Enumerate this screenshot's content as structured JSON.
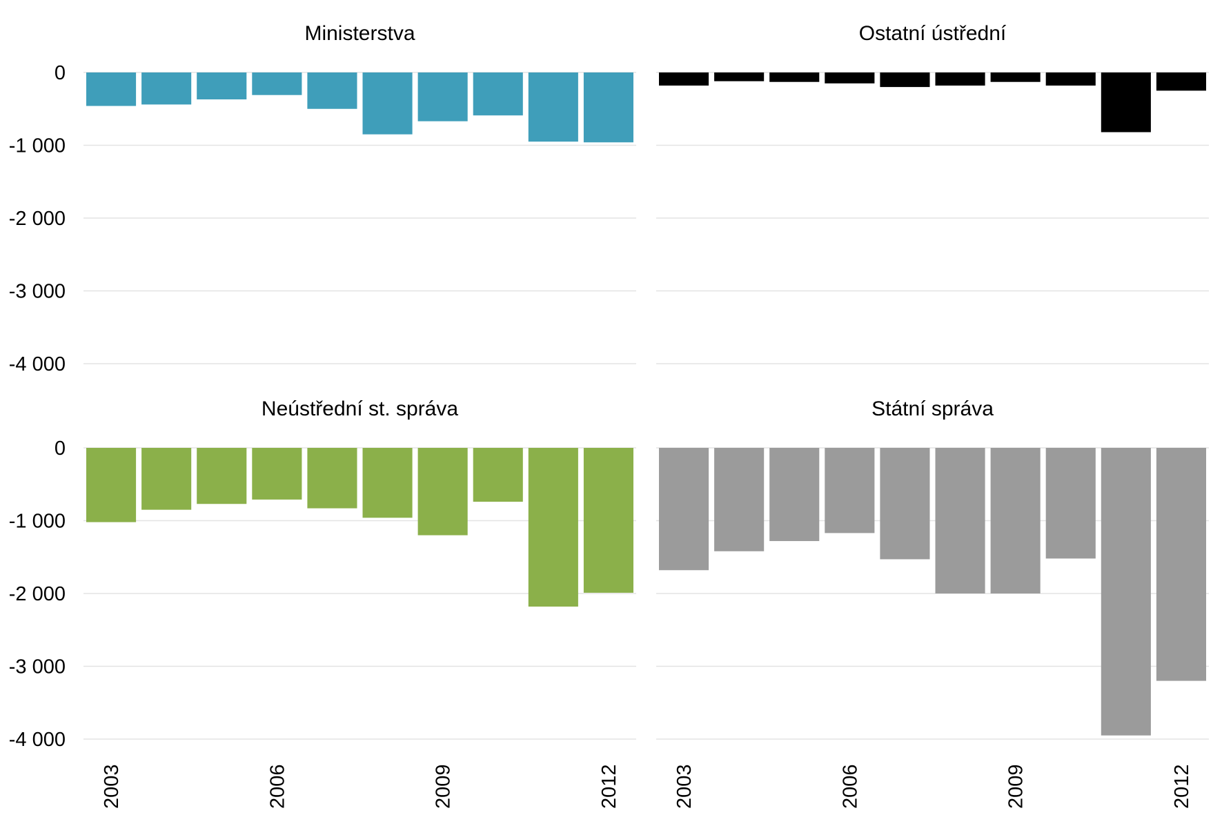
{
  "chart_data": [
    {
      "type": "bar",
      "title": "Ministerstva",
      "color": "#3f9eba",
      "categories": [
        "2003",
        "2004",
        "2005",
        "2006",
        "2007",
        "2008",
        "2009",
        "2010",
        "2011",
        "2012"
      ],
      "values": [
        -460,
        -440,
        -370,
        -310,
        -500,
        -850,
        -670,
        -590,
        -950,
        -960
      ],
      "ylim": [
        -4500,
        0
      ],
      "yticks": [
        0,
        -1000,
        -2000,
        -3000,
        -4000
      ],
      "ytick_labels": [
        "0",
        "-1 000",
        "-2 000",
        "-3 000",
        "-4 000"
      ],
      "xtick_labels": [
        "2003",
        "2006",
        "2009",
        "2012"
      ],
      "grid": true
    },
    {
      "type": "bar",
      "title": "Ostatní ústřední",
      "color": "#000000",
      "categories": [
        "2003",
        "2004",
        "2005",
        "2006",
        "2007",
        "2008",
        "2009",
        "2010",
        "2011",
        "2012"
      ],
      "values": [
        -180,
        -120,
        -130,
        -150,
        -200,
        -180,
        -130,
        -180,
        -820,
        -250
      ],
      "ylim": [
        -4500,
        0
      ],
      "yticks": [
        0,
        -1000,
        -2000,
        -3000,
        -4000
      ],
      "xtick_labels": [
        "2003",
        "2006",
        "2009",
        "2012"
      ],
      "grid": true
    },
    {
      "type": "bar",
      "title": "Neústřední st. správa",
      "color": "#8bb04a",
      "categories": [
        "2003",
        "2004",
        "2005",
        "2006",
        "2007",
        "2008",
        "2009",
        "2010",
        "2011",
        "2012"
      ],
      "values": [
        -1020,
        -850,
        -770,
        -710,
        -830,
        -960,
        -1200,
        -740,
        -2180,
        -1990
      ],
      "ylim": [
        -4500,
        0
      ],
      "yticks": [
        0,
        -1000,
        -2000,
        -3000,
        -4000
      ],
      "ytick_labels": [
        "0",
        "-1 000",
        "-2 000",
        "-3 000",
        "-4 000"
      ],
      "xtick_labels": [
        "2003",
        "2006",
        "2009",
        "2012"
      ],
      "grid": true
    },
    {
      "type": "bar",
      "title": "Státní správa",
      "color": "#9b9b9b",
      "categories": [
        "2003",
        "2004",
        "2005",
        "2006",
        "2007",
        "2008",
        "2009",
        "2010",
        "2011",
        "2012"
      ],
      "values": [
        -1680,
        -1420,
        -1280,
        -1170,
        -1530,
        -2000,
        -2000,
        -1520,
        -3950,
        -3200
      ],
      "ylim": [
        -4500,
        0
      ],
      "yticks": [
        0,
        -1000,
        -2000,
        -3000,
        -4000
      ],
      "xtick_labels": [
        "2003",
        "2006",
        "2009",
        "2012"
      ],
      "grid": true
    }
  ]
}
